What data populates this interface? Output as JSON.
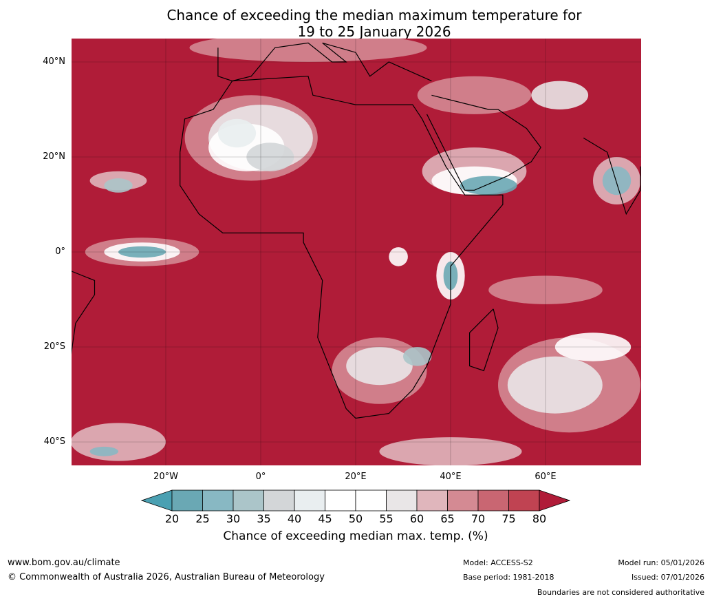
{
  "title_line1": "Chance of exceeding the median maximum temperature for",
  "title_line2": "19 to 25 January 2026",
  "lat_labels": [
    "40°N",
    "20°N",
    "0°",
    "20°S",
    "40°S"
  ],
  "lon_labels": [
    "20°W",
    "0°",
    "20°E",
    "40°E",
    "60°E"
  ],
  "colorbar": {
    "ticks": [
      "20",
      "25",
      "30",
      "35",
      "40",
      "45",
      "50",
      "55",
      "60",
      "65",
      "70",
      "75",
      "80"
    ],
    "colors": [
      "#6aa8b4",
      "#88b8c3",
      "#abc5c9",
      "#d3d6d8",
      "#e9eef0",
      "#ffffff",
      "#ffffff",
      "#e9e6e7",
      "#e0b6bc",
      "#d48a93",
      "#c96672",
      "#c04352"
    ],
    "under_color": "#4aa0b2",
    "over_color": "#b01c38",
    "label": "Chance of exceeding median max. temp. (%)"
  },
  "footer": {
    "url": "www.bom.gov.au/climate",
    "copyright": "© Commonwealth of Australia 2026, Australian Bureau of Meteorology",
    "model": "Model: ACCESS-S2",
    "base_period": "Base period: 1981-2018",
    "model_run": "Model run: 05/01/2026",
    "issued": "Issued: 07/01/2026",
    "disclaimer": "Boundaries are not considered authoritative"
  }
}
